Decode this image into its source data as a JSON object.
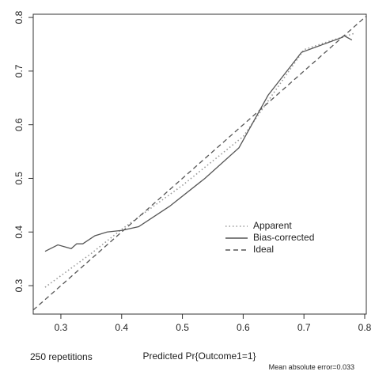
{
  "chart_data": {
    "type": "line",
    "xlabel": "Predicted Pr{Outcome1=1}",
    "annotations": [
      "250 repetitions",
      "Mean absolute error=0.033"
    ],
    "xlim": [
      0.2545,
      0.8026
    ],
    "ylim": [
      0.247,
      0.806
    ],
    "xticks": [
      0.3,
      0.4,
      0.5,
      0.6,
      0.7,
      0.8
    ],
    "yticks": [
      0.3,
      0.4,
      0.5,
      0.6,
      0.7,
      0.8
    ],
    "series": [
      {
        "name": "Apparent",
        "color": "#999999",
        "dash": "dotted",
        "x": [
          0.274,
          0.35,
          0.4,
          0.5,
          0.6,
          0.7,
          0.74,
          0.782
        ],
        "values": [
          0.297,
          0.36,
          0.405,
          0.487,
          0.578,
          0.74,
          0.755,
          0.77
        ]
      },
      {
        "name": "Bias-corrected",
        "color": "#555555",
        "dash": "solid",
        "x": [
          0.274,
          0.295,
          0.317,
          0.326,
          0.336,
          0.356,
          0.376,
          0.4,
          0.428,
          0.479,
          0.537,
          0.593,
          0.641,
          0.696,
          0.761,
          0.766,
          0.779
        ],
        "values": [
          0.364,
          0.376,
          0.369,
          0.378,
          0.378,
          0.393,
          0.4,
          0.403,
          0.41,
          0.448,
          0.5,
          0.557,
          0.655,
          0.735,
          0.762,
          0.766,
          0.758
        ]
      },
      {
        "name": "Ideal",
        "color": "#555555",
        "dash": "dashed",
        "x": [
          0.2545,
          0.8026
        ],
        "values": [
          0.2545,
          0.8026
        ]
      }
    ]
  }
}
